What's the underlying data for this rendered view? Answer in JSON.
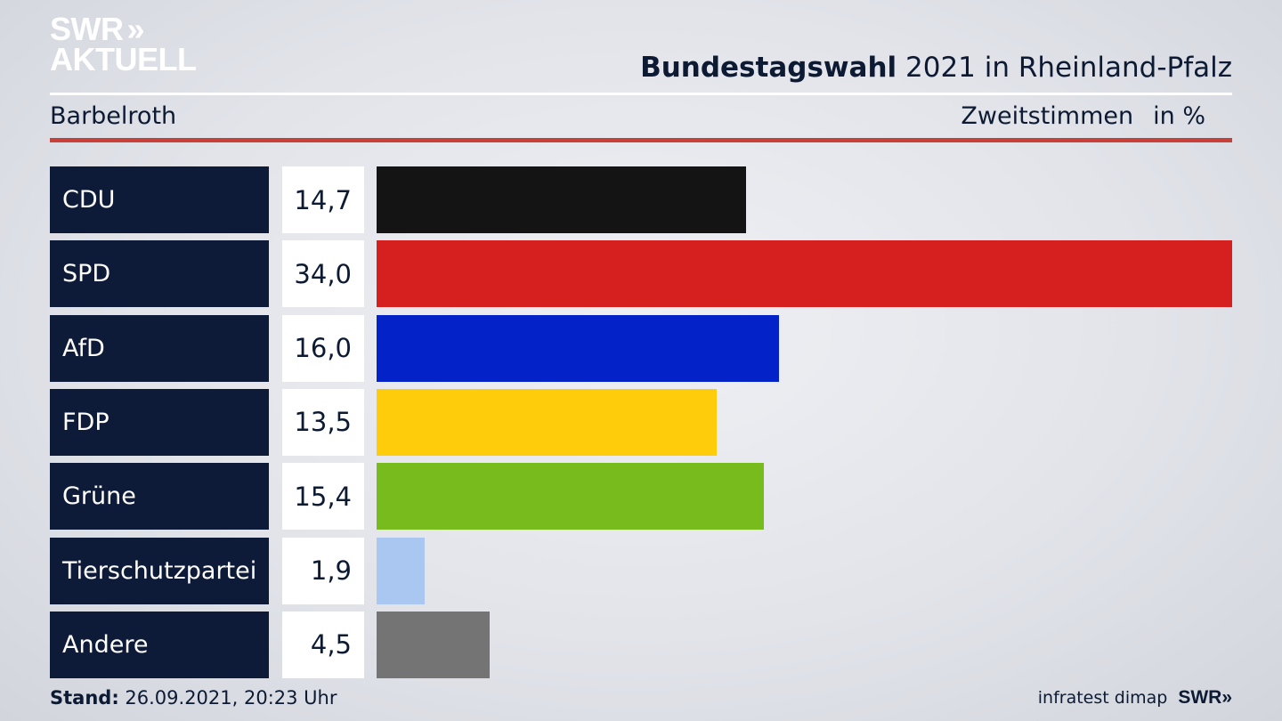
{
  "brand": {
    "line1": "SWR",
    "line2": "AKTUELL",
    "chevrons": "»"
  },
  "header": {
    "title_bold": "Bundestagswahl",
    "title_rest": " 2021 in Rheinland-Pfalz",
    "location": "Barbelroth",
    "measure": "Zweitstimmen",
    "unit": "in %"
  },
  "chart_data": {
    "type": "bar",
    "orientation": "horizontal",
    "title": "Bundestagswahl 2021 in Rheinland-Pfalz",
    "subtitle": "Barbelroth",
    "xlabel": "Zweitstimmen in %",
    "categories": [
      "CDU",
      "SPD",
      "AfD",
      "FDP",
      "Grüne",
      "Tierschutzpartei",
      "Andere"
    ],
    "values": [
      14.7,
      34.0,
      16.0,
      13.5,
      15.4,
      1.9,
      4.5
    ],
    "value_labels": [
      "14,7",
      "34,0",
      "16,0",
      "13,5",
      "15,4",
      "1,9",
      "4,5"
    ],
    "colors": [
      "#141414",
      "#d62020",
      "#0322c8",
      "#fecc0a",
      "#77bb1c",
      "#a9c7f0",
      "#747474"
    ],
    "xlim": [
      0,
      34.0
    ],
    "grid": false,
    "legend": "none"
  },
  "footer": {
    "stand_label": "Stand:",
    "stand_value": " 26.09.2021, 20:23 Uhr",
    "source": "infratest dimap",
    "logo": "SWR",
    "logo_chevrons": "»"
  }
}
